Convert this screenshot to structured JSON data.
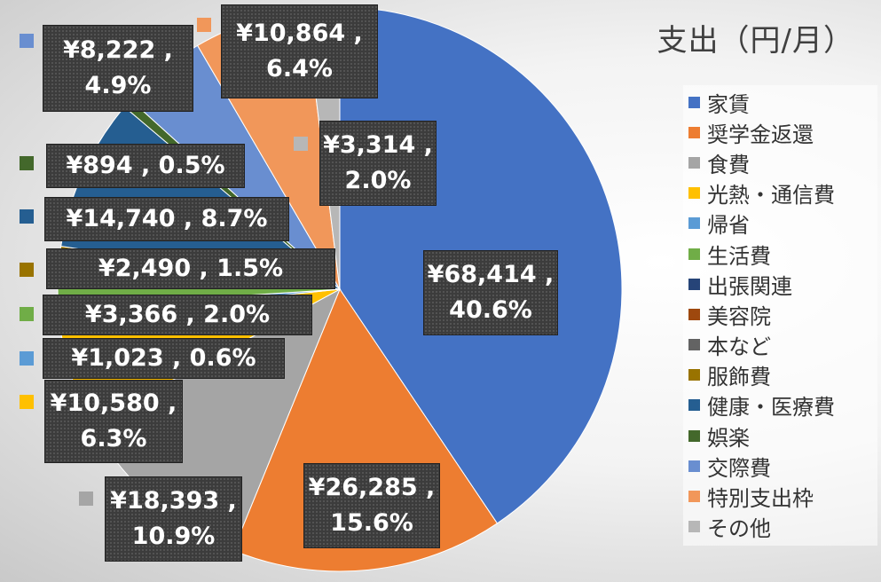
{
  "chart_data": {
    "type": "pie",
    "title": "支出（円/月）",
    "legend_position": "right",
    "slices": [
      {
        "name": "家賃",
        "value": 68414,
        "percent": "40.6%",
        "label": "¥68,414 ,\n40.6%",
        "color": "#4472C4"
      },
      {
        "name": "奨学金返還",
        "value": 26285,
        "percent": "15.6%",
        "label": "¥26,285 ,\n15.6%",
        "color": "#ED7D31"
      },
      {
        "name": "食費",
        "value": 18393,
        "percent": "10.9%",
        "label": "¥18,393 ,\n10.9%",
        "color": "#A5A5A5"
      },
      {
        "name": "光熱・通信費",
        "value": 10580,
        "percent": "6.3%",
        "label": "¥10,580 ,\n6.3%",
        "color": "#FFC000"
      },
      {
        "name": "帰省",
        "value": 1023,
        "percent": "0.6%",
        "label": "¥1,023 , 0.6%",
        "color": "#5B9BD5"
      },
      {
        "name": "生活費",
        "value": 3366,
        "percent": "2.0%",
        "label": "¥3,366 , 2.0%",
        "color": "#70AD47"
      },
      {
        "name": "出張関連",
        "value": 0,
        "percent": "",
        "label": "",
        "color": "#264478"
      },
      {
        "name": "美容院",
        "value": 0,
        "percent": "",
        "label": "",
        "color": "#9E480E"
      },
      {
        "name": "本など",
        "value": 0,
        "percent": "",
        "label": "",
        "color": "#636363"
      },
      {
        "name": "服飾費",
        "value": 2490,
        "percent": "1.5%",
        "label": "¥2,490 , 1.5%",
        "color": "#997300"
      },
      {
        "name": "健康・医療費",
        "value": 14740,
        "percent": "8.7%",
        "label": "¥14,740 , 8.7%",
        "color": "#255E91"
      },
      {
        "name": "娯楽",
        "value": 894,
        "percent": "0.5%",
        "label": "¥894 , 0.5%",
        "color": "#43682B"
      },
      {
        "name": "交際費",
        "value": 8222,
        "percent": "4.9%",
        "label": "¥8,222 ,\n4.9%",
        "color": "#698ED0"
      },
      {
        "name": "特別支出枠",
        "value": 10864,
        "percent": "6.4%",
        "label": "¥10,864 ,\n6.4%",
        "color": "#F1975A"
      },
      {
        "name": "その他",
        "value": 3314,
        "percent": "2.0%",
        "label": "¥3,314 ,\n2.0%",
        "color": "#B7B7B7"
      }
    ]
  }
}
